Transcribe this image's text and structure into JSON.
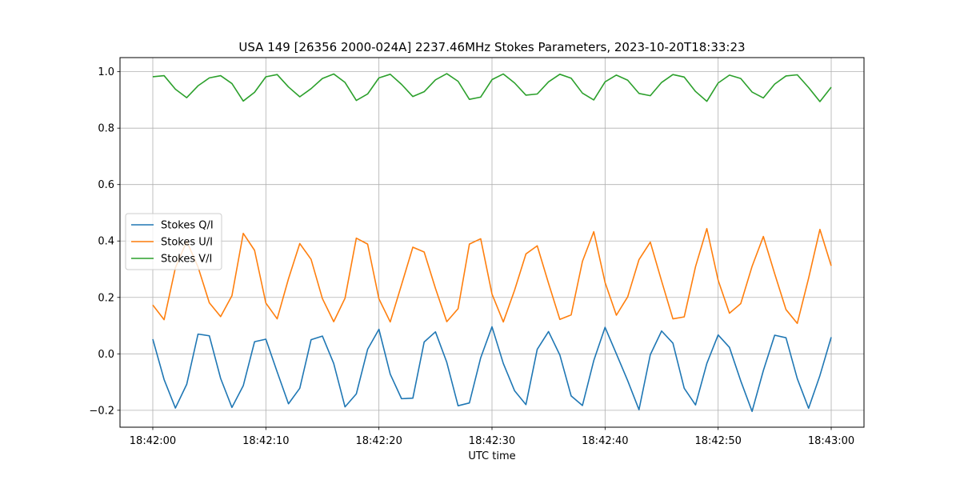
{
  "chart_data": {
    "type": "line",
    "title": "USA 149 [26356 2000-024A] 2237.46MHz Stokes Parameters, 2023-10-20T18:33:23",
    "xlabel": "UTC time",
    "ylabel": "",
    "xlim": [
      -2.9,
      62.9
    ],
    "ylim": [
      -0.26,
      1.05
    ],
    "x_ticks": [
      0,
      10,
      20,
      30,
      40,
      50,
      60
    ],
    "x_tick_labels": [
      "18:42:00",
      "18:42:10",
      "18:42:20",
      "18:42:30",
      "18:42:40",
      "18:42:50",
      "18:43:00"
    ],
    "y_ticks": [
      -0.2,
      0.0,
      0.2,
      0.4,
      0.6,
      0.8,
      1.0
    ],
    "y_tick_labels": [
      "−0.2",
      "0.0",
      "0.2",
      "0.4",
      "0.6",
      "0.8",
      "1.0"
    ],
    "grid": true,
    "legend_position": "center-left",
    "x": [
      0,
      1,
      2,
      3,
      4,
      5,
      6,
      7,
      8,
      9,
      10,
      11,
      12,
      13,
      14,
      15,
      16,
      17,
      18,
      19,
      20,
      21,
      22,
      23,
      24,
      25,
      26,
      27,
      28,
      29,
      30,
      31,
      32,
      33,
      34,
      35,
      36,
      37,
      38,
      39,
      40,
      41,
      42,
      43,
      44,
      45,
      46,
      47,
      48,
      49,
      50,
      51,
      52,
      53,
      54,
      55,
      56,
      57,
      58,
      59,
      60
    ],
    "series": [
      {
        "name": "Stokes Q/I",
        "color": "#1f77b4",
        "values": [
          0.052,
          -0.091,
          -0.192,
          -0.108,
          0.07,
          0.064,
          -0.087,
          -0.19,
          -0.113,
          0.043,
          0.052,
          -0.064,
          -0.177,
          -0.122,
          0.05,
          0.063,
          -0.034,
          -0.188,
          -0.142,
          0.016,
          0.087,
          -0.072,
          -0.159,
          -0.157,
          0.042,
          0.078,
          -0.03,
          -0.184,
          -0.174,
          -0.014,
          0.096,
          -0.034,
          -0.131,
          -0.18,
          0.016,
          0.079,
          -0.004,
          -0.149,
          -0.183,
          -0.024,
          0.094,
          0.0,
          -0.095,
          -0.198,
          -0.003,
          0.081,
          0.038,
          -0.122,
          -0.181,
          -0.034,
          0.067,
          0.023,
          -0.096,
          -0.204,
          -0.059,
          0.066,
          0.057,
          -0.088,
          -0.193,
          -0.077,
          0.059
        ]
      },
      {
        "name": "Stokes U/I",
        "color": "#ff7f0e",
        "values": [
          0.173,
          0.121,
          0.305,
          0.399,
          0.308,
          0.181,
          0.132,
          0.206,
          0.427,
          0.367,
          0.18,
          0.124,
          0.266,
          0.391,
          0.335,
          0.196,
          0.114,
          0.197,
          0.41,
          0.389,
          0.195,
          0.113,
          0.245,
          0.378,
          0.361,
          0.232,
          0.114,
          0.16,
          0.389,
          0.408,
          0.212,
          0.113,
          0.226,
          0.354,
          0.383,
          0.25,
          0.122,
          0.138,
          0.328,
          0.433,
          0.253,
          0.137,
          0.202,
          0.334,
          0.396,
          0.258,
          0.124,
          0.131,
          0.309,
          0.444,
          0.261,
          0.144,
          0.178,
          0.31,
          0.416,
          0.284,
          0.157,
          0.108,
          0.268,
          0.441,
          0.312
        ]
      },
      {
        "name": "Stokes V/I",
        "color": "#2ca02c",
        "values": [
          0.982,
          0.986,
          0.938,
          0.908,
          0.95,
          0.978,
          0.986,
          0.958,
          0.896,
          0.927,
          0.982,
          0.99,
          0.946,
          0.911,
          0.94,
          0.976,
          0.992,
          0.962,
          0.898,
          0.921,
          0.978,
          0.991,
          0.955,
          0.912,
          0.929,
          0.971,
          0.993,
          0.966,
          0.902,
          0.91,
          0.972,
          0.992,
          0.96,
          0.917,
          0.921,
          0.964,
          0.991,
          0.977,
          0.924,
          0.9,
          0.964,
          0.988,
          0.97,
          0.923,
          0.915,
          0.962,
          0.99,
          0.981,
          0.93,
          0.895,
          0.96,
          0.988,
          0.976,
          0.928,
          0.907,
          0.956,
          0.985,
          0.989,
          0.944,
          0.894,
          0.945
        ]
      }
    ]
  }
}
